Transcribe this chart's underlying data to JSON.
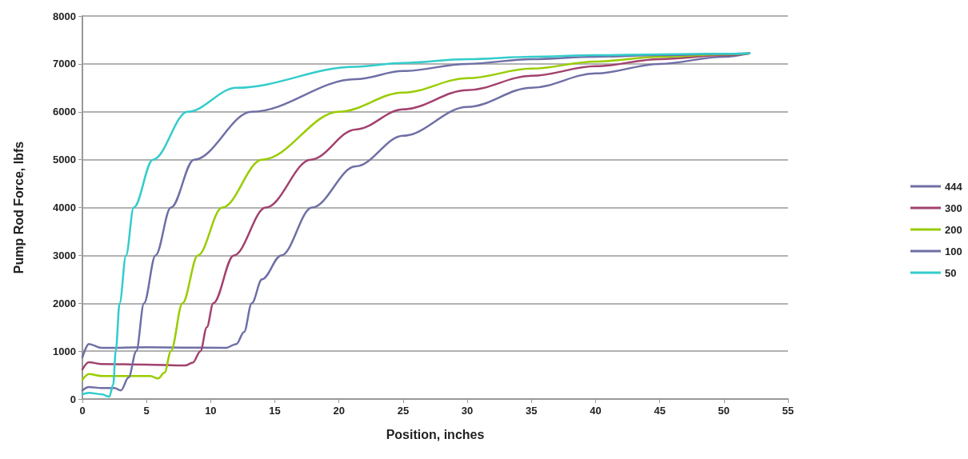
{
  "chart_data": {
    "type": "line",
    "xlabel": "Position, inches",
    "ylabel": "Pump Rod Force, lbfs",
    "xlim": [
      0,
      55
    ],
    "xticks": [
      0,
      5,
      10,
      15,
      20,
      25,
      30,
      35,
      40,
      45,
      50,
      55
    ],
    "ylim": [
      0,
      8000
    ],
    "yticks": [
      0,
      1000,
      2000,
      3000,
      4000,
      5000,
      6000,
      7000,
      8000
    ],
    "grid": "y",
    "legend": "right",
    "marker": "none",
    "line_style": "solid",
    "series": [
      {
        "name": "444",
        "color": "#6f6fa6",
        "x": [
          0,
          0.5,
          1.5,
          5,
          11.2,
          12,
          12.6,
          13.2,
          14,
          15.5,
          17.9,
          21.3,
          25,
          30,
          35,
          40,
          45,
          50,
          52
        ],
        "values": [
          870,
          1150,
          1070,
          1080,
          1070,
          1150,
          1400,
          2000,
          2500,
          3000,
          4000,
          4860,
          5500,
          6100,
          6500,
          6800,
          7000,
          7150,
          7220
        ]
      },
      {
        "name": "300",
        "color": "#a2416e",
        "x": [
          0,
          0.5,
          1.5,
          5,
          8,
          8.6,
          9.2,
          9.7,
          10.2,
          11.8,
          14.3,
          17.8,
          21.3,
          25,
          30,
          35,
          40,
          45,
          50,
          52
        ],
        "values": [
          620,
          770,
          730,
          720,
          700,
          760,
          1000,
          1500,
          2000,
          3000,
          4000,
          5000,
          5630,
          6050,
          6450,
          6750,
          6950,
          7100,
          7180,
          7220
        ]
      },
      {
        "name": "200",
        "color": "#99cc00",
        "x": [
          0,
          0.5,
          1.5,
          5.3,
          5.9,
          6.4,
          6.9,
          7.8,
          9,
          10.9,
          14,
          20,
          25,
          30,
          35,
          40,
          45,
          50,
          52
        ],
        "values": [
          400,
          520,
          480,
          480,
          430,
          550,
          1000,
          2000,
          3000,
          4000,
          5000,
          6000,
          6400,
          6700,
          6900,
          7050,
          7150,
          7200,
          7220
        ]
      },
      {
        "name": "100",
        "color": "#6f6fa6",
        "x": [
          0,
          0.5,
          1.5,
          2.5,
          3,
          3.6,
          4.2,
          4.8,
          5.7,
          6.9,
          8.7,
          13.2,
          21.3,
          25,
          30,
          35,
          40,
          45,
          50,
          52
        ],
        "values": [
          180,
          250,
          230,
          230,
          180,
          450,
          1000,
          2000,
          3000,
          4000,
          5000,
          6000,
          6680,
          6850,
          7000,
          7100,
          7150,
          7180,
          7210,
          7220
        ]
      },
      {
        "name": "50",
        "color": "#33cccc",
        "x": [
          0,
          0.5,
          1.5,
          2.1,
          2.4,
          2.6,
          2.9,
          3.4,
          4,
          5.5,
          8.2,
          12,
          21.3,
          25,
          30,
          35,
          40,
          45,
          50,
          52
        ],
        "values": [
          100,
          130,
          100,
          50,
          300,
          1000,
          2000,
          3000,
          4000,
          5000,
          6000,
          6500,
          6940,
          7020,
          7100,
          7150,
          7180,
          7200,
          7210,
          7220
        ]
      }
    ]
  }
}
